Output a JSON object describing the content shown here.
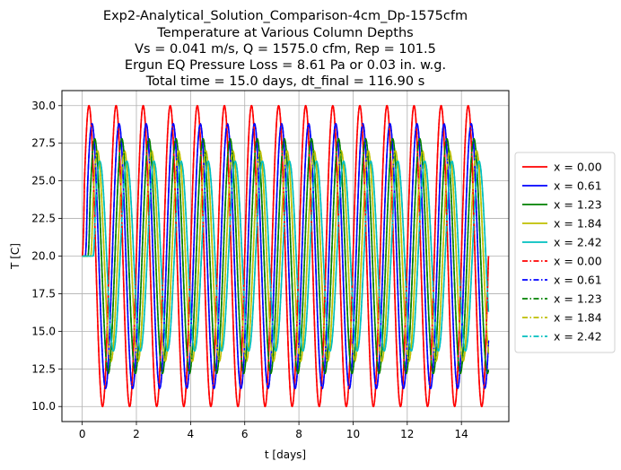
{
  "chart_data": {
    "type": "line",
    "title_lines": [
      "Exp2-Analytical_Solution_Comparison-4cm_Dp-1575cfm",
      "Temperature at Various Column Depths",
      "Vs = 0.041 m/s, Q = 1575.0 cfm, Rep = 101.5",
      "Ergun EQ Pressure Loss = 8.61 Pa or 0.03 in. w.g.",
      "Total time = 15.0 days, dt_final = 116.90 s"
    ],
    "xlabel": "t [days]",
    "ylabel": "T [C]",
    "xlim": [
      -0.75,
      15.75
    ],
    "ylim": [
      9.0,
      31.0
    ],
    "xticks": [
      "0",
      "2",
      "4",
      "6",
      "8",
      "10",
      "12",
      "14"
    ],
    "yticks": [
      "10.0",
      "12.5",
      "15.0",
      "17.5",
      "20.0",
      "22.5",
      "25.0",
      "27.5",
      "30.0"
    ],
    "grid": true,
    "legend_position": "outside-right",
    "t_end_days": 15.0,
    "period_days": 1.0,
    "baseline_T": 20.0,
    "series": [
      {
        "name": "x = 0.00",
        "color": "#ff0000",
        "style": "solid",
        "amplitude": 10.0,
        "phase_lag_days": 0.0,
        "onset_days": 0.0
      },
      {
        "name": "x = 0.61",
        "color": "#0000ff",
        "style": "solid",
        "amplitude": 8.8,
        "phase_lag_days": 0.11,
        "onset_days": 0.11
      },
      {
        "name": "x = 1.23",
        "color": "#008000",
        "style": "solid",
        "amplitude": 7.8,
        "phase_lag_days": 0.21,
        "onset_days": 0.21
      },
      {
        "name": "x = 1.84",
        "color": "#bfbf00",
        "style": "solid",
        "amplitude": 7.0,
        "phase_lag_days": 0.31,
        "onset_days": 0.31
      },
      {
        "name": "x = 2.42",
        "color": "#00bfbf",
        "style": "solid",
        "amplitude": 6.3,
        "phase_lag_days": 0.4,
        "onset_days": 0.4
      },
      {
        "name": "x = 0.00",
        "color": "#ff0000",
        "style": "dashdot",
        "amplitude": 10.0,
        "phase_lag_days": 0.0,
        "onset_days": 0.0
      },
      {
        "name": "x = 0.61",
        "color": "#0000ff",
        "style": "dashdot",
        "amplitude": 8.8,
        "phase_lag_days": 0.11,
        "onset_days": 0.11
      },
      {
        "name": "x = 1.23",
        "color": "#008000",
        "style": "dashdot",
        "amplitude": 7.8,
        "phase_lag_days": 0.21,
        "onset_days": 0.21
      },
      {
        "name": "x = 1.84",
        "color": "#bfbf00",
        "style": "dashdot",
        "amplitude": 7.0,
        "phase_lag_days": 0.31,
        "onset_days": 0.31
      },
      {
        "name": "x = 2.42",
        "color": "#00bfbf",
        "style": "dashdot",
        "amplitude": 6.3,
        "phase_lag_days": 0.4,
        "onset_days": 0.4
      }
    ]
  }
}
